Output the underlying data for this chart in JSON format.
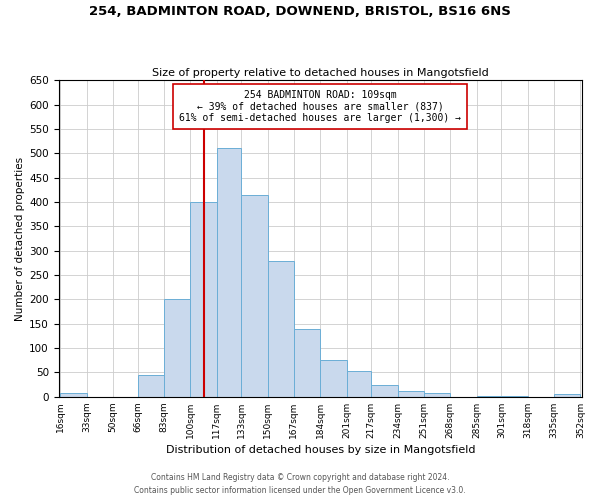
{
  "title": "254, BADMINTON ROAD, DOWNEND, BRISTOL, BS16 6NS",
  "subtitle": "Size of property relative to detached houses in Mangotsfield",
  "xlabel": "Distribution of detached houses by size in Mangotsfield",
  "ylabel": "Number of detached properties",
  "bar_color": "#c9d9ed",
  "bar_edge_color": "#6baed6",
  "annotation_line_color": "#cc0000",
  "annotation_property_value": 109,
  "annotation_box_text": "254 BADMINTON ROAD: 109sqm\n← 39% of detached houses are smaller (837)\n61% of semi-detached houses are larger (1,300) →",
  "footer_line1": "Contains HM Land Registry data © Crown copyright and database right 2024.",
  "footer_line2": "Contains public sector information licensed under the Open Government Licence v3.0.",
  "bin_edges": [
    16,
    33,
    50,
    66,
    83,
    100,
    117,
    133,
    150,
    167,
    184,
    201,
    217,
    234,
    251,
    268,
    285,
    301,
    318,
    335,
    352
  ],
  "bin_labels": [
    "16sqm",
    "33sqm",
    "50sqm",
    "66sqm",
    "83sqm",
    "100sqm",
    "117sqm",
    "133sqm",
    "150sqm",
    "167sqm",
    "184sqm",
    "201sqm",
    "217sqm",
    "234sqm",
    "251sqm",
    "268sqm",
    "285sqm",
    "301sqm",
    "318sqm",
    "335sqm",
    "352sqm"
  ],
  "bin_counts": [
    8,
    0,
    0,
    45,
    200,
    400,
    510,
    415,
    278,
    140,
    75,
    52,
    25,
    12,
    8,
    0,
    2,
    1,
    0,
    5
  ],
  "ylim": [
    0,
    650
  ],
  "yticks": [
    0,
    50,
    100,
    150,
    200,
    250,
    300,
    350,
    400,
    450,
    500,
    550,
    600,
    650
  ],
  "background_color": "#ffffff",
  "grid_color": "#cccccc"
}
